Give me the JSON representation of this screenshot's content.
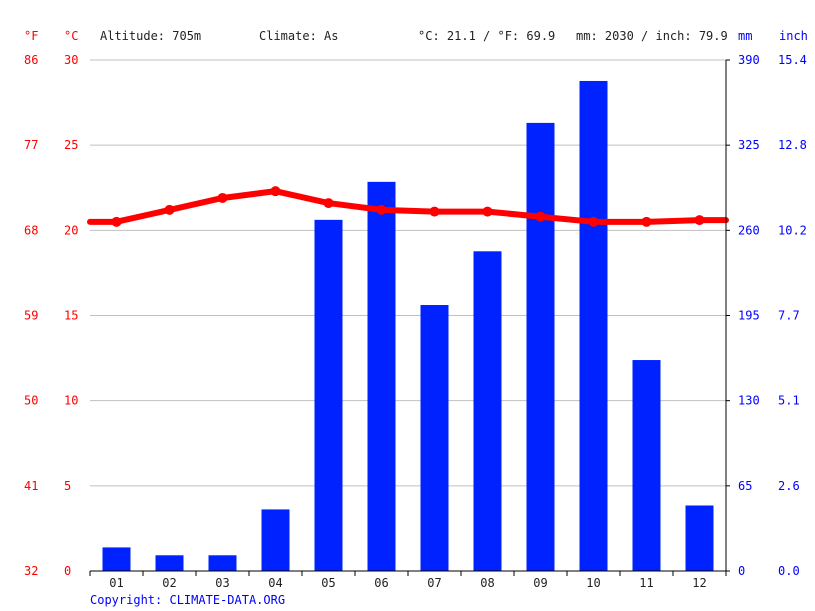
{
  "header": {
    "unit_f": "°F",
    "unit_c": "°C",
    "altitude": "Altitude: 705m",
    "climate": "Climate: As",
    "temp_summary": "°C: 21.1 / °F: 69.9",
    "precip_summary": "mm: 2030 / inch: 79.9",
    "unit_mm": "mm",
    "unit_inch": "inch"
  },
  "footer": {
    "copyright": "Copyright: CLIMATE-DATA.ORG"
  },
  "chart_data": {
    "type": "bar",
    "categories": [
      "01",
      "02",
      "03",
      "04",
      "05",
      "06",
      "07",
      "08",
      "09",
      "10",
      "11",
      "12"
    ],
    "series": [
      {
        "type": "bar",
        "axis": "precipitation",
        "color": "#0022ff",
        "values": [
          18,
          12,
          12,
          47,
          268,
          297,
          203,
          244,
          342,
          374,
          161,
          50
        ]
      },
      {
        "type": "line",
        "axis": "temperature",
        "color": "#ff0000",
        "values": [
          20.5,
          21.2,
          21.9,
          22.3,
          21.6,
          21.2,
          21.1,
          21.1,
          20.8,
          20.5,
          20.5,
          20.6
        ]
      }
    ],
    "axes": {
      "fahrenheit_ticks": [
        "32",
        "41",
        "50",
        "59",
        "68",
        "77",
        "86"
      ],
      "celsius_ticks": [
        "0",
        "5",
        "10",
        "15",
        "20",
        "25",
        "30"
      ],
      "celsius_range": [
        0,
        30
      ],
      "mm_ticks": [
        "0",
        "65",
        "130",
        "195",
        "260",
        "325",
        "390"
      ],
      "mm_range": [
        0,
        390
      ],
      "inch_ticks": [
        "0.0",
        "2.6",
        "5.1",
        "7.7",
        "10.2",
        "12.8",
        "15.4"
      ]
    },
    "grid": true
  }
}
